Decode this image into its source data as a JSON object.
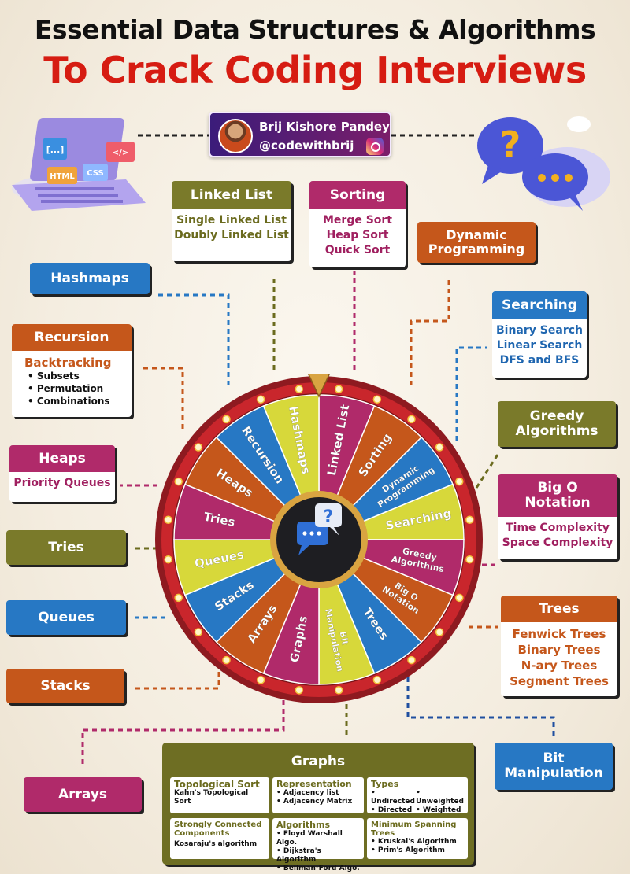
{
  "title": {
    "line1": "Essential Data Structures & Algorithms",
    "line2": "To Crack Coding Interviews"
  },
  "author": {
    "name": "Brij Kishore Pandey",
    "handle": "@codewithbrij"
  },
  "laptop": {
    "chips": [
      "[...]",
      "HTML",
      "CSS",
      "</>"
    ]
  },
  "wheel": {
    "segments": [
      "Linked List",
      "Sorting",
      "Dynamic Programming",
      "Searching",
      "Greedy Algorithms",
      "Big O Notation",
      "Trees",
      "Bit Manipulation",
      "Graphs",
      "Arrays",
      "Stacks",
      "Queues",
      "Tries",
      "Heaps",
      "Recursion",
      "Hashmaps"
    ],
    "colors": [
      "#b02a6a",
      "#c5571b",
      "#2778c4",
      "#d7d83a",
      "#b02a6a",
      "#c5571b",
      "#2778c4",
      "#d7d83a"
    ]
  },
  "boxes": {
    "linked_list": {
      "title": "Linked List",
      "items": [
        "Single Linked List",
        "Doubly Linked List"
      ]
    },
    "sorting": {
      "title": "Sorting",
      "items": [
        "Merge Sort",
        "Heap Sort",
        "Quick Sort"
      ]
    },
    "dynamic_programming": {
      "title": "Dynamic Programming"
    },
    "hashmaps": {
      "title": "Hashmaps"
    },
    "searching": {
      "title": "Searching",
      "items": [
        "Binary Search",
        "Linear Search",
        "DFS and BFS"
      ]
    },
    "recursion": {
      "title": "Recursion",
      "subtitle": "Backtracking",
      "items": [
        "Subsets",
        "Permutation",
        "Combinations"
      ]
    },
    "greedy": {
      "title": "Greedy Algorithms"
    },
    "heaps": {
      "title": "Heaps",
      "items": [
        "Priority Queues"
      ]
    },
    "big_o": {
      "title": "Big O Notation",
      "items": [
        "Time Complexity",
        "Space Complexity"
      ]
    },
    "tries": {
      "title": "Tries"
    },
    "queues": {
      "title": "Queues"
    },
    "trees": {
      "title": "Trees",
      "items": [
        "Fenwick Trees",
        "Binary Trees",
        "N-ary Trees",
        "Segment Trees"
      ]
    },
    "stacks": {
      "title": "Stacks"
    },
    "bit_manipulation": {
      "title": "Bit Manipulation"
    },
    "arrays": {
      "title": "Arrays"
    }
  },
  "graphs": {
    "title": "Graphs",
    "topological": {
      "heading": "Topological Sort",
      "text": "Kahn's Topological Sort"
    },
    "representation": {
      "heading": "Representation",
      "items": [
        "Adjacency list",
        "Adjacency Matrix"
      ]
    },
    "types": {
      "heading": "Types",
      "items": [
        "Undirected",
        "Unweighted",
        "Directed",
        "Weighted"
      ]
    },
    "scc": {
      "heading": "Strongly Connected Components",
      "text": "Kosaraju's algorithm"
    },
    "algorithms": {
      "heading": "Algorithms",
      "items": [
        "Floyd Warshall Algo.",
        "Dijkstra's Algorithm",
        "Bellman-Ford Algo."
      ]
    },
    "mst": {
      "heading": "Minimum Spanning Trees",
      "items": [
        "Kruskal's Algorithm",
        "Prim's Algorithm"
      ]
    }
  }
}
